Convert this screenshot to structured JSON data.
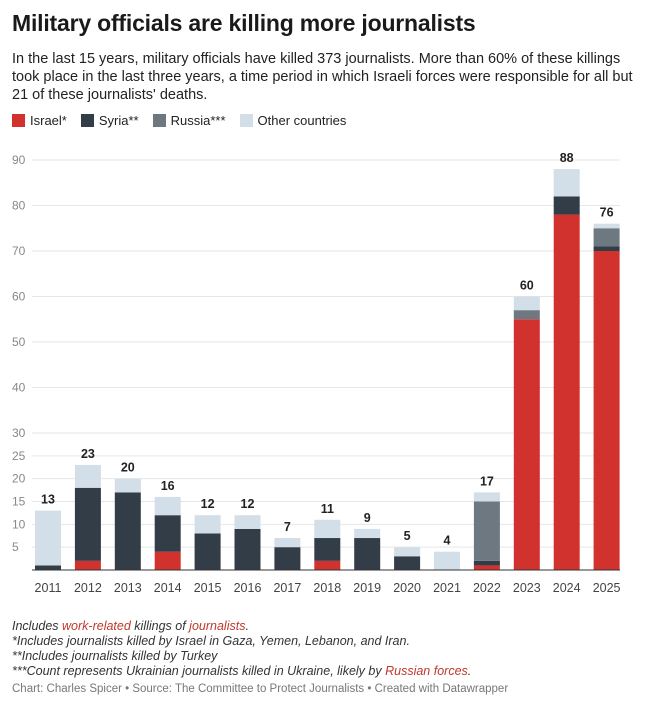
{
  "title": "Military officials are killing more journalists",
  "description_lines": [
    "In the last 15 years, military officials have killed 373 journalists. More than 60% of these killings",
    "took place in the last three years, a time period in which Israeli forces were responsible for all but",
    "21 of these journalists' deaths."
  ],
  "legend": [
    {
      "label": "Israel*",
      "color": "#d2322d"
    },
    {
      "label": "Syria**",
      "color": "#333d47"
    },
    {
      "label": "Russia***",
      "color": "#6e7880"
    },
    {
      "label": "Other countries",
      "color": "#d2dee8"
    }
  ],
  "chart_data": {
    "type": "bar",
    "stacked": true,
    "categories": [
      "2011",
      "2012",
      "2013",
      "2014",
      "2015",
      "2016",
      "2017",
      "2018",
      "2019",
      "2020",
      "2021",
      "2022",
      "2023",
      "2024",
      "2025"
    ],
    "series": [
      {
        "name": "Israel*",
        "color": "#d2322d",
        "values": [
          0,
          2,
          0,
          4,
          0,
          0,
          0,
          2,
          0,
          0,
          0,
          1,
          55,
          78,
          70
        ]
      },
      {
        "name": "Syria**",
        "color": "#333d47",
        "values": [
          1,
          16,
          17,
          8,
          8,
          9,
          5,
          5,
          7,
          3,
          0,
          1,
          0,
          4,
          1
        ]
      },
      {
        "name": "Russia***",
        "color": "#6e7880",
        "values": [
          0,
          0,
          0,
          0,
          0,
          0,
          0,
          0,
          0,
          0,
          0,
          13,
          2,
          0,
          4
        ]
      },
      {
        "name": "Other countries",
        "color": "#d2dee8",
        "values": [
          12,
          5,
          3,
          4,
          4,
          3,
          2,
          4,
          2,
          2,
          4,
          2,
          3,
          6,
          1
        ]
      }
    ],
    "totals": [
      "13",
      "23",
      "20",
      "16",
      "12",
      "12",
      "7",
      "11",
      "9",
      "5",
      "4",
      "17",
      "60",
      "88",
      "76"
    ],
    "y_ticks": [
      "5",
      "10",
      "15",
      "20",
      "25",
      "30",
      "40",
      "50",
      "60",
      "70",
      "80",
      "90"
    ],
    "y_tick_values": [
      5,
      10,
      15,
      20,
      25,
      30,
      40,
      50,
      60,
      70,
      80,
      90
    ],
    "ylim": [
      0,
      90
    ],
    "y_scale": "piecewise-linear, 0–30 expanded, 30–90 compressed",
    "grid": true
  },
  "notes": {
    "line1_prefix": "Includes ",
    "line1_link1": "work-related",
    "line1_mid": " killings of ",
    "line1_link2": "journalists",
    "line1_end": ".",
    "line2": "*Includes journalists killed by Israel in Gaza, Yemen, Lebanon, and Iran.",
    "line3": "**Includes journalists killed by Turkey",
    "line4_prefix": "***Count represents Ukrainian journalists killed in Ukraine, likely by ",
    "line4_link": "Russian forces",
    "line4_end": "."
  },
  "credit": "Chart: Charles Spicer • Source: The Committee to Protect Journalists • Created with Datawrapper"
}
